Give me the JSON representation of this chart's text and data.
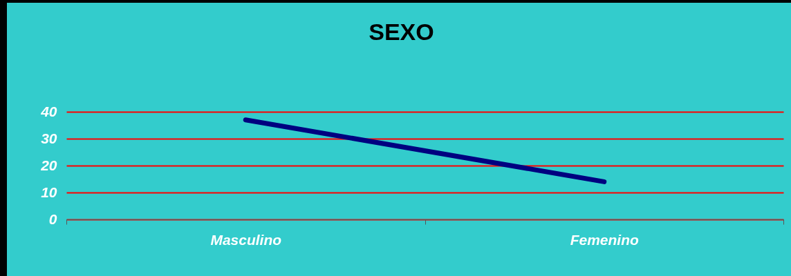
{
  "chart_data": {
    "type": "line",
    "title": "SEXO",
    "categories": [
      "Masculino",
      "Femenino"
    ],
    "series": [
      {
        "color": "#000080",
        "values": [
          37,
          14
        ]
      }
    ],
    "ylim": [
      0,
      40
    ],
    "yticks": [
      0,
      10,
      20,
      30,
      40
    ],
    "grid": "y",
    "legend": false,
    "marker": "none",
    "line_style": "solid"
  }
}
